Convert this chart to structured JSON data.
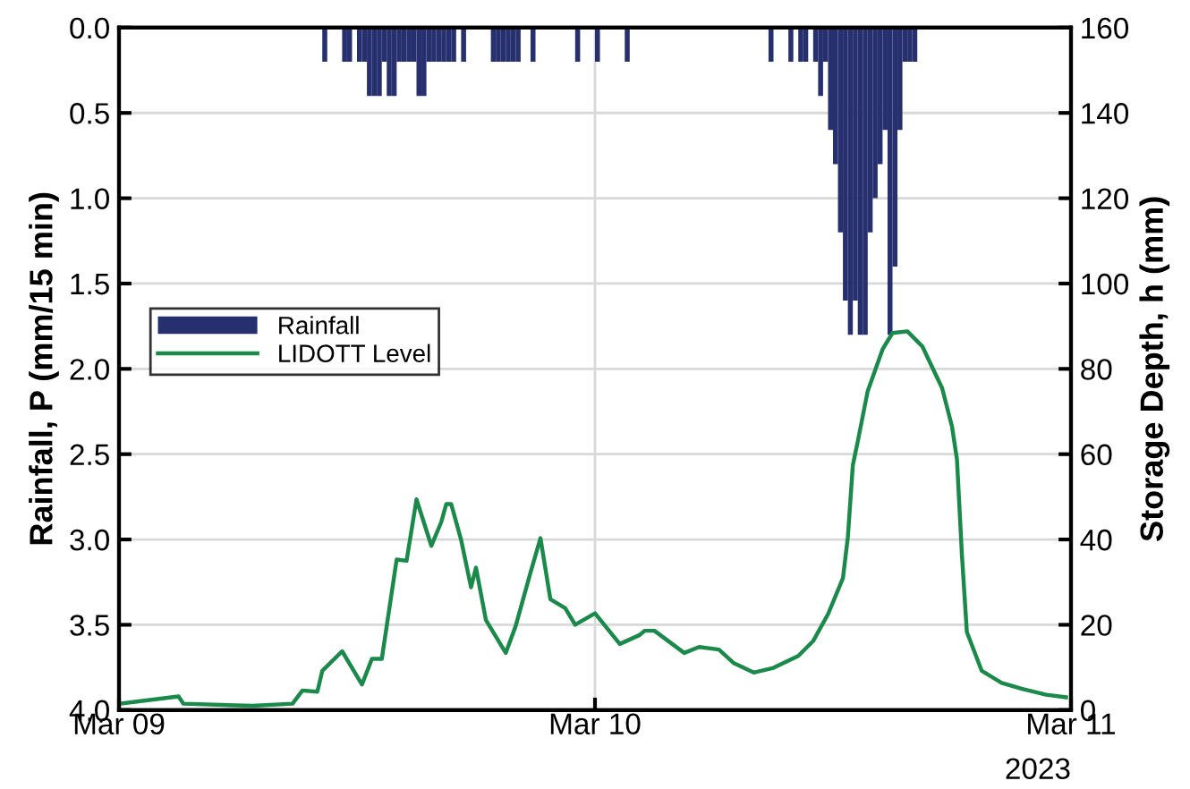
{
  "chart_data": {
    "type": "bar",
    "ylabel": "Rainfall, P (mm/15 min)",
    "y2label": "Storage Depth, h (mm)",
    "annotations": [
      "2023"
    ],
    "xlim": [
      "2023-03-09",
      "2023-03-11"
    ],
    "xticks": [
      {
        "value": "2023-03-09",
        "label": "Mar 09"
      },
      {
        "value": "2023-03-10",
        "label": "Mar 10"
      },
      {
        "value": "2023-03-11",
        "label": "Mar 11"
      }
    ],
    "ylim": [
      4.0,
      0.0
    ],
    "yticks": [
      {
        "value": 0,
        "label": "0.0"
      },
      0.5,
      {
        "value": 1,
        "label": "1.0"
      },
      1.5,
      {
        "value": 2,
        "label": "2.0"
      },
      2.5,
      {
        "value": 3,
        "label": "3.0"
      },
      3.5,
      {
        "value": 4,
        "label": "4.0"
      }
    ],
    "y2lim": [
      0,
      160
    ],
    "y2ticks": [
      0,
      20,
      40,
      60,
      80,
      100,
      120,
      140,
      160
    ],
    "grid": true,
    "legend": "left",
    "series": [
      {
        "name": "Rainfall",
        "color": "#27306e",
        "x": [
          "2023-03-09T10:15",
          "2023-03-09T11:15",
          "2023-03-09T11:30",
          "2023-03-09T12:00",
          "2023-03-09T12:15",
          "2023-03-09T12:30",
          "2023-03-09T12:45",
          "2023-03-09T13:00",
          "2023-03-09T13:15",
          "2023-03-09T13:30",
          "2023-03-09T13:45",
          "2023-03-09T14:00",
          "2023-03-09T14:15",
          "2023-03-09T14:30",
          "2023-03-09T14:45",
          "2023-03-09T15:00",
          "2023-03-09T15:15",
          "2023-03-09T15:30",
          "2023-03-09T15:45",
          "2023-03-09T16:00",
          "2023-03-09T16:15",
          "2023-03-09T16:30",
          "2023-03-09T16:45",
          "2023-03-09T17:15",
          "2023-03-09T18:45",
          "2023-03-09T19:00",
          "2023-03-09T19:15",
          "2023-03-09T19:30",
          "2023-03-09T19:45",
          "2023-03-09T20:00",
          "2023-03-09T20:45",
          "2023-03-09T23:00",
          "2023-03-10T00:00",
          "2023-03-10T01:30",
          "2023-03-10T08:45",
          "2023-03-10T09:45",
          "2023-03-10T10:15",
          "2023-03-10T10:30",
          "2023-03-10T11:00",
          "2023-03-10T11:15",
          "2023-03-10T11:30",
          "2023-03-10T11:45",
          "2023-03-10T12:00",
          "2023-03-10T12:15",
          "2023-03-10T12:30",
          "2023-03-10T12:45",
          "2023-03-10T13:00",
          "2023-03-10T13:15",
          "2023-03-10T13:30",
          "2023-03-10T13:45",
          "2023-03-10T14:00",
          "2023-03-10T14:15",
          "2023-03-10T14:30",
          "2023-03-10T14:45",
          "2023-03-10T15:00",
          "2023-03-10T15:15",
          "2023-03-10T15:30",
          "2023-03-10T15:45",
          "2023-03-10T16:00"
        ],
        "values": [
          0.2,
          0.2,
          0.2,
          0.2,
          0.2,
          0.4,
          0.4,
          0.4,
          0.2,
          0.4,
          0.4,
          0.2,
          0.2,
          0.2,
          0.2,
          0.4,
          0.4,
          0.2,
          0.2,
          0.2,
          0.2,
          0.2,
          0.2,
          0.2,
          0.2,
          0.2,
          0.2,
          0.2,
          0.2,
          0.2,
          0.2,
          0.2,
          0.2,
          0.2,
          0.2,
          0.2,
          0.2,
          0.2,
          0.2,
          0.4,
          0.2,
          0.6,
          0.8,
          1.2,
          1.6,
          1.8,
          1.6,
          1.8,
          1.8,
          1.2,
          1.0,
          0.8,
          0.6,
          1.8,
          1.4,
          0.6,
          0.2,
          0.2,
          0.2
        ]
      },
      {
        "name": "LIDOTT Level",
        "type": "line",
        "axis": "y2",
        "color": "#1a8a4a",
        "x": [
          "2023-03-09T00:00",
          "2023-03-09T03:00",
          "2023-03-09T03:15",
          "2023-03-09T06:45",
          "2023-03-09T08:45",
          "2023-03-09T09:15",
          "2023-03-09T10:00",
          "2023-03-09T10:15",
          "2023-03-09T11:15",
          "2023-03-09T12:15",
          "2023-03-09T12:45",
          "2023-03-09T13:15",
          "2023-03-09T14:00",
          "2023-03-09T14:30",
          "2023-03-09T15:00",
          "2023-03-09T15:45",
          "2023-03-09T16:15",
          "2023-03-09T16:30",
          "2023-03-09T16:45",
          "2023-03-09T17:15",
          "2023-03-09T17:45",
          "2023-03-09T18:00",
          "2023-03-09T18:30",
          "2023-03-09T19:30",
          "2023-03-09T20:00",
          "2023-03-09T20:45",
          "2023-03-09T21:15",
          "2023-03-09T21:45",
          "2023-03-09T22:30",
          "2023-03-09T23:00",
          "2023-03-10T00:00",
          "2023-03-10T01:15",
          "2023-03-10T02:15",
          "2023-03-10T02:30",
          "2023-03-10T03:00",
          "2023-03-10T04:30",
          "2023-03-10T05:15",
          "2023-03-10T06:15",
          "2023-03-10T07:00",
          "2023-03-10T08:00",
          "2023-03-10T09:00",
          "2023-03-10T10:15",
          "2023-03-10T11:00",
          "2023-03-10T11:45",
          "2023-03-10T12:30",
          "2023-03-10T12:45",
          "2023-03-10T13:00",
          "2023-03-10T13:15",
          "2023-03-10T13:45",
          "2023-03-10T14:30",
          "2023-03-10T15:00",
          "2023-03-10T15:45",
          "2023-03-10T16:30",
          "2023-03-10T17:30",
          "2023-03-10T18:00",
          "2023-03-10T18:15",
          "2023-03-10T18:30",
          "2023-03-10T18:45",
          "2023-03-10T19:30",
          "2023-03-10T20:30",
          "2023-03-10T21:30",
          "2023-03-10T22:45",
          "2023-03-10T23:45"
        ],
        "values": [
          1.5,
          3.2,
          1.5,
          1.0,
          1.5,
          4.6,
          4.3,
          9.2,
          13.8,
          6.0,
          12.0,
          12.0,
          35.3,
          35.0,
          49.4,
          38.5,
          44.1,
          48.3,
          48.3,
          39.9,
          28.8,
          33.4,
          21.1,
          13.4,
          19.7,
          32.3,
          40.3,
          26.0,
          23.9,
          20.0,
          22.7,
          15.5,
          17.6,
          18.6,
          18.6,
          13.4,
          14.8,
          14.2,
          11.0,
          8.8,
          9.9,
          12.7,
          16.2,
          22.5,
          30.9,
          40.6,
          57.4,
          63.0,
          74.8,
          84.6,
          88.4,
          88.8,
          85.3,
          75.5,
          66.5,
          58.8,
          36.4,
          18.3,
          9.2,
          6.4,
          5.0,
          3.6,
          3.0
        ]
      }
    ]
  }
}
